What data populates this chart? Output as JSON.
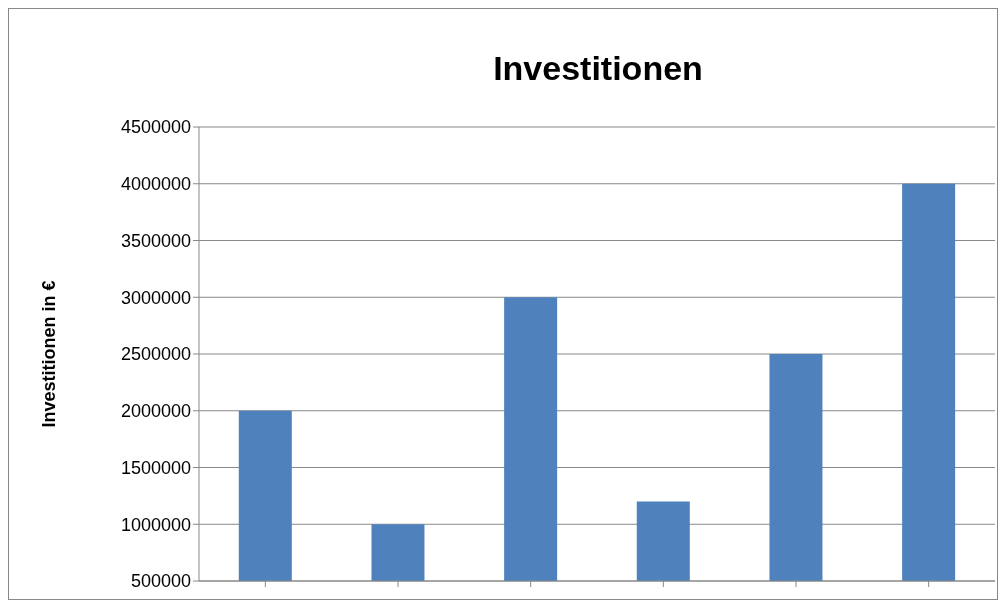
{
  "chart_data": {
    "type": "bar",
    "title": "Investitionen",
    "ylabel": "Investitionen in €",
    "categories": [
      null,
      null,
      null,
      null,
      null,
      null
    ],
    "values": [
      2000000,
      1000000,
      3000000,
      1200000,
      2500000,
      4000000
    ],
    "color": "#4f81bd",
    "ylim": [
      500000,
      4500000
    ],
    "yticks": [
      500000,
      1000000,
      1500000,
      2000000,
      2500000,
      3000000,
      3500000,
      4000000,
      4500000
    ],
    "grid": "y",
    "legend": false
  }
}
